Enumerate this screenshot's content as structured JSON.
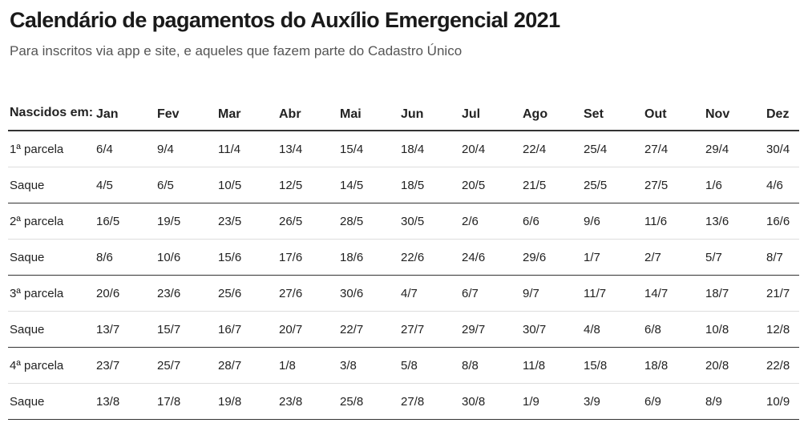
{
  "header": {
    "title": "Calendário de pagamentos do Auxílio Emergencial 2021",
    "subtitle": "Para inscritos via app e site, e aqueles que fazem parte do Cadastro Único"
  },
  "table": {
    "columns": [
      "Nascidos em:",
      "Jan",
      "Fev",
      "Mar",
      "Abr",
      "Mai",
      "Jun",
      "Jul",
      "Ago",
      "Set",
      "Out",
      "Nov",
      "Dez"
    ],
    "rows": [
      [
        "1ª parcela",
        "6/4",
        "9/4",
        "11/4",
        "13/4",
        "15/4",
        "18/4",
        "20/4",
        "22/4",
        "25/4",
        "27/4",
        "29/4",
        "30/4"
      ],
      [
        "Saque",
        "4/5",
        "6/5",
        "10/5",
        "12/5",
        "14/5",
        "18/5",
        "20/5",
        "21/5",
        "25/5",
        "27/5",
        "1/6",
        "4/6"
      ],
      [
        "2ª parcela",
        "16/5",
        "19/5",
        "23/5",
        "26/5",
        "28/5",
        "30/5",
        "2/6",
        "6/6",
        "9/6",
        "11/6",
        "13/6",
        "16/6"
      ],
      [
        "Saque",
        "8/6",
        "10/6",
        "15/6",
        "17/6",
        "18/6",
        "22/6",
        "24/6",
        "29/6",
        "1/7",
        "2/7",
        "5/7",
        "8/7"
      ],
      [
        "3ª parcela",
        "20/6",
        "23/6",
        "25/6",
        "27/6",
        "30/6",
        "4/7",
        "6/7",
        "9/7",
        "11/7",
        "14/7",
        "18/7",
        "21/7"
      ],
      [
        "Saque",
        "13/7",
        "15/7",
        "16/7",
        "20/7",
        "22/7",
        "27/7",
        "29/7",
        "30/7",
        "4/8",
        "6/8",
        "10/8",
        "12/8"
      ],
      [
        "4ª parcela",
        "23/7",
        "25/7",
        "28/7",
        "1/8",
        "3/8",
        "5/8",
        "8/8",
        "11/8",
        "15/8",
        "18/8",
        "20/8",
        "22/8"
      ],
      [
        "Saque",
        "13/8",
        "17/8",
        "19/8",
        "23/8",
        "25/8",
        "27/8",
        "30/8",
        "1/9",
        "3/9",
        "6/9",
        "8/9",
        "10/9"
      ]
    ]
  }
}
